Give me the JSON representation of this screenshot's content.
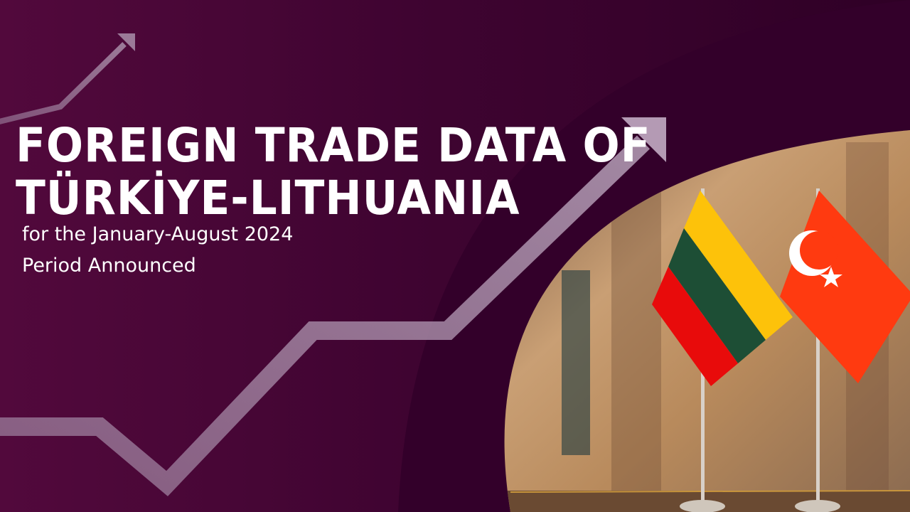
{
  "banner": {
    "title_line1": "FOREIGN TRADE DATA OF",
    "title_line2": "TÜRKİYE-LITHUANIA",
    "subtitle_line1": "for the January-August 2024",
    "subtitle_line2": "Period Announced"
  },
  "colors": {
    "background": "#3f0431",
    "arrow": "#b49ab4",
    "lithuania_yellow": "#fdc20a",
    "lithuania_green": "#1d4e35",
    "lithuania_red": "#e80b0b",
    "turkey_red": "#ff3a10"
  },
  "icons": [
    "trend-arrow-icon",
    "lithuania-flag",
    "turkey-flag"
  ]
}
